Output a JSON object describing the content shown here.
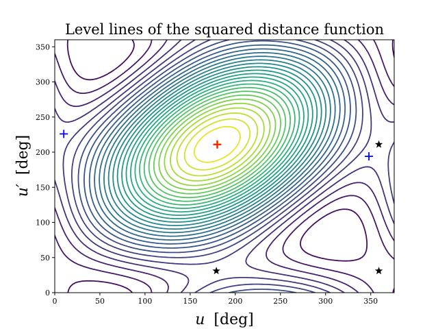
{
  "chart_data": {
    "type": "contour",
    "title": "Level lines of the squared distance function",
    "xlabel": "u",
    "xlabel_unit": "[deg]",
    "ylabel": "u′",
    "ylabel_unit": "[deg]",
    "xlim": [
      0,
      376
    ],
    "ylim": [
      0,
      360
    ],
    "xticks": [
      0,
      50,
      100,
      150,
      200,
      250,
      300,
      350
    ],
    "yticks": [
      0,
      50,
      100,
      150,
      200,
      250,
      300,
      350
    ],
    "grid": false,
    "colormap": "viridis",
    "colormap_stops": [
      "#440154",
      "#472c7a",
      "#3b518b",
      "#2c718e",
      "#21918c",
      "#27ad81",
      "#5cc863",
      "#aadc32",
      "#fde725"
    ],
    "maximum": {
      "x": 180,
      "y": 211,
      "marker": "cross",
      "color": "#ff7f0e"
    },
    "markers": [
      {
        "x": 180,
        "y": 211,
        "marker": "plus",
        "color": "#e41a1c"
      },
      {
        "x": 10,
        "y": 226,
        "marker": "plus",
        "color": "#0000ff"
      },
      {
        "x": 348,
        "y": 194,
        "marker": "plus",
        "color": "#0000ff"
      },
      {
        "x": 179,
        "y": 31,
        "marker": "star",
        "color": "#000000"
      },
      {
        "x": 359,
        "y": 31,
        "marker": "star",
        "color": "#000000"
      },
      {
        "x": 359,
        "y": 211,
        "marker": "star",
        "color": "#000000"
      }
    ],
    "minima": [
      {
        "x": 179,
        "y": 31
      },
      {
        "x": 359,
        "y": 31
      },
      {
        "x": 359,
        "y": 211
      }
    ],
    "levels": 30,
    "field": {
      "center": {
        "x": 180,
        "y": 211
      },
      "diagonal_shift": 180
    }
  }
}
